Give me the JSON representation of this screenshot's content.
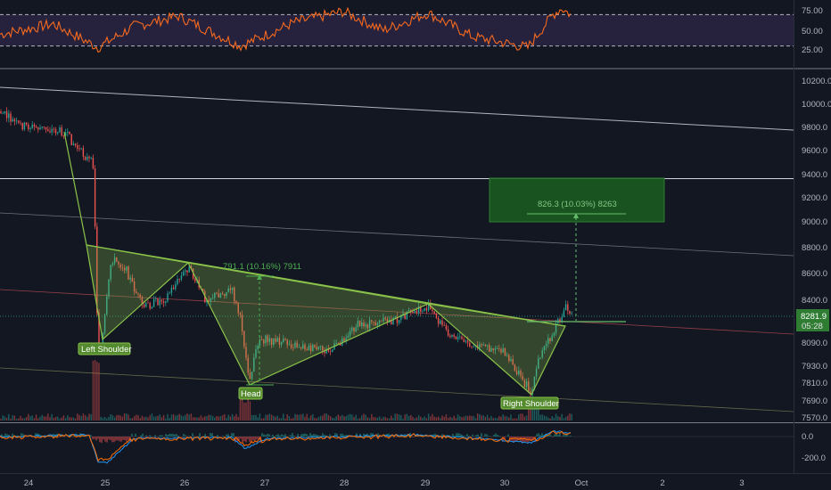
{
  "chart_data": [
    {
      "panel": "rsi",
      "type": "line",
      "y_ticks": [
        "75.00",
        "50.00",
        "25.00"
      ],
      "ylim": [
        0,
        100
      ],
      "levels": [
        70,
        30
      ],
      "line_color": "#f5691e",
      "band_color": "#7e57c2"
    },
    {
      "panel": "price",
      "type": "candlestick",
      "y_ticks": [
        "10200.0",
        "10000.0",
        "9800.0",
        "9600.0",
        "9400.0",
        "9200.0",
        "9000.0",
        "8800.0",
        "8600.0",
        "8400.0",
        "8281.9",
        "8090.0",
        "7930.0",
        "7810.0",
        "7690.0",
        "7570.0"
      ],
      "x_ticks": [
        "24",
        "25",
        "26",
        "27",
        "28",
        "29",
        "30",
        "Oct",
        "2",
        "3"
      ],
      "last_price": "8281.9",
      "countdown": "05:28",
      "pattern_labels": [
        "Left Shoulder",
        "Head",
        "Right Shoulder"
      ],
      "measurements": [
        "791.1 (10.16%) 7911",
        "826.3 (10.03%) 8263"
      ],
      "colors": {
        "up": "#26a69a",
        "down": "#ef5350",
        "pattern": "#8bc34a",
        "target": "#1b5e20",
        "price_label": "#2e7d32"
      }
    },
    {
      "panel": "macd",
      "type": "histogram",
      "y_ticks": [
        "0.0",
        "-200.0"
      ],
      "colors": {
        "macd": "#2196f3",
        "signal": "#ff6d00",
        "hist_up": "#26a69a",
        "hist_down": "#ef5350"
      }
    }
  ]
}
